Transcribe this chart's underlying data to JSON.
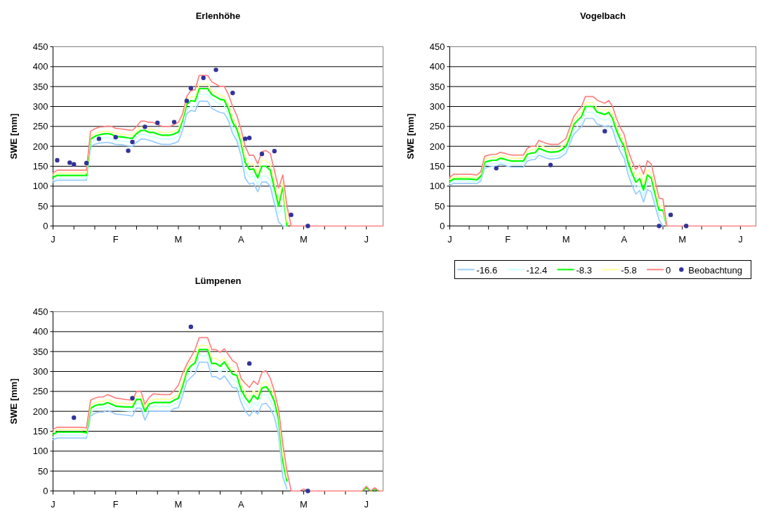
{
  "chart_data": [
    {
      "type": "line",
      "title": "Erlenhöhe",
      "ylabel": "SWE [mm]",
      "ylim": [
        0,
        450
      ],
      "yticks": [
        0,
        50,
        100,
        150,
        200,
        250,
        300,
        350,
        400,
        450
      ],
      "grid": "y",
      "legend": false,
      "marker": "none",
      "categories": [
        "J",
        null,
        null,
        null,
        null,
        null,
        null,
        null,
        null,
        null,
        null,
        null,
        null,
        null,
        null,
        "F",
        null,
        null,
        null,
        null,
        null,
        null,
        null,
        null,
        null,
        null,
        null,
        null,
        null,
        null,
        "M",
        null,
        null,
        null,
        null,
        null,
        null,
        null,
        null,
        null,
        null,
        null,
        null,
        null,
        null,
        "A",
        null,
        null,
        null,
        null,
        null,
        null,
        null,
        null,
        null,
        null,
        null,
        null,
        null,
        null,
        "M",
        null,
        null,
        null,
        null,
        null,
        null,
        null,
        null,
        null,
        null,
        null,
        null,
        null,
        null,
        "J",
        null,
        null,
        null,
        null
      ],
      "series": [
        {
          "color": "#99ccff",
          "values": [
            110,
            115,
            115,
            115,
            115,
            115,
            115,
            115,
            115,
            200,
            205,
            208,
            209,
            210,
            208,
            205,
            204,
            203,
            201,
            200,
            210,
            218,
            218,
            215,
            212,
            208,
            205,
            205,
            205,
            208,
            212,
            240,
            282,
            290,
            288,
            313,
            313,
            313,
            295,
            290,
            285,
            283,
            264,
            232,
            214,
            177,
            120,
            105,
            108,
            86,
            110,
            111,
            100,
            55,
            10,
            0,
            0,
            null,
            null,
            null,
            null,
            null,
            null,
            null,
            null,
            null,
            null,
            null,
            null,
            null,
            null,
            null,
            null,
            null,
            null,
            null,
            null,
            null,
            null,
            null
          ]
        },
        {
          "color": "#ccffff",
          "values": [
            115,
            120,
            120,
            120,
            120,
            120,
            120,
            120,
            120,
            208,
            215,
            219,
            221,
            222,
            220,
            215,
            214,
            213,
            211,
            210,
            222,
            230,
            230,
            225,
            225,
            221,
            218,
            218,
            218,
            221,
            225,
            253,
            292,
            300,
            298,
            330,
            330,
            330,
            318,
            311,
            305,
            302,
            279,
            245,
            227,
            192,
            140,
            123,
            125,
            102,
            125,
            125,
            115,
            73,
            30,
            50,
            0,
            null,
            null,
            null,
            null,
            null,
            null,
            null,
            null,
            null,
            null,
            null,
            null,
            null,
            null,
            null,
            null,
            null,
            null,
            null,
            null,
            null,
            null,
            null
          ]
        },
        {
          "color": "#00ff00",
          "values": [
            122,
            127,
            127,
            127,
            127,
            127,
            127,
            127,
            127,
            218,
            225,
            229,
            231,
            232,
            230,
            225,
            224,
            223,
            221,
            220,
            232,
            240,
            240,
            235,
            235,
            231,
            228,
            228,
            228,
            231,
            236,
            265,
            305,
            315,
            313,
            345,
            345,
            345,
            330,
            324,
            318,
            316,
            293,
            260,
            243,
            210,
            160,
            142,
            143,
            121,
            150,
            150,
            140,
            95,
            50,
            100,
            0,
            null,
            null,
            null,
            null,
            null,
            null,
            null,
            null,
            null,
            null,
            null,
            null,
            null,
            null,
            null,
            null,
            null,
            null,
            null,
            null,
            null,
            null,
            null
          ]
        },
        {
          "color": "#ffff99",
          "values": [
            128,
            133,
            133,
            133,
            133,
            133,
            133,
            133,
            133,
            226,
            232,
            236,
            237,
            238,
            236,
            232,
            231,
            230,
            229,
            228,
            238,
            248,
            248,
            243,
            243,
            239,
            235,
            235,
            235,
            238,
            244,
            272,
            315,
            325,
            323,
            356,
            356,
            356,
            340,
            334,
            328,
            326,
            304,
            272,
            255,
            221,
            172,
            154,
            155,
            133,
            165,
            165,
            155,
            110,
            65,
            110,
            10,
            0,
            null,
            null,
            null,
            null,
            null,
            null,
            null,
            null,
            null,
            null,
            null,
            null,
            null,
            null,
            null,
            null,
            null,
            null,
            null,
            null,
            null,
            null
          ]
        },
        {
          "color": "#ff8080",
          "values": [
            133,
            140,
            140,
            140,
            140,
            140,
            140,
            140,
            140,
            238,
            244,
            248,
            249,
            251,
            250,
            245,
            244,
            243,
            241,
            240,
            250,
            263,
            263,
            260,
            260,
            255,
            250,
            250,
            250,
            255,
            260,
            281,
            325,
            340,
            342,
            378,
            378,
            378,
            362,
            356,
            350,
            350,
            330,
            300,
            277,
            243,
            200,
            177,
            178,
            156,
            187,
            189,
            182,
            139,
            95,
            128,
            50,
            0,
            0,
            0,
            0,
            0,
            0,
            0,
            0,
            0,
            0,
            0,
            0,
            0,
            0,
            0,
            0,
            0,
            0,
            0,
            0,
            0,
            0,
            0
          ]
        },
        {
          "type": "scatter",
          "marker": "circle",
          "color": "#333399",
          "values": [
            null,
            165,
            null,
            null,
            159,
            155,
            null,
            null,
            158,
            null,
            null,
            219,
            null,
            null,
            null,
            223,
            null,
            null,
            189,
            211,
            null,
            null,
            249,
            null,
            null,
            259,
            null,
            null,
            null,
            261,
            null,
            null,
            314,
            346,
            null,
            null,
            372,
            null,
            null,
            392,
            null,
            null,
            null,
            334,
            null,
            null,
            219,
            221,
            null,
            null,
            181,
            null,
            null,
            188,
            null,
            null,
            null,
            28,
            null,
            null,
            null,
            0,
            null,
            null,
            null,
            null,
            null,
            null,
            null,
            null,
            null,
            null,
            null,
            null,
            null,
            null,
            null,
            null,
            null,
            null
          ]
        }
      ]
    },
    {
      "type": "line",
      "title": "Vogelbach",
      "ylabel": "SWE [mm]",
      "ylim": [
        0,
        450
      ],
      "yticks": [
        0,
        50,
        100,
        150,
        200,
        250,
        300,
        350,
        400,
        450
      ],
      "grid": "y",
      "legend": "bottom",
      "marker": "none",
      "categories": [
        "J",
        null,
        null,
        null,
        null,
        null,
        null,
        null,
        null,
        null,
        null,
        null,
        null,
        null,
        null,
        "F",
        null,
        null,
        null,
        null,
        null,
        null,
        null,
        null,
        null,
        null,
        null,
        null,
        null,
        null,
        "M",
        null,
        null,
        null,
        null,
        null,
        null,
        null,
        null,
        null,
        null,
        null,
        null,
        null,
        null,
        "A",
        null,
        null,
        null,
        null,
        null,
        null,
        null,
        null,
        null,
        null,
        null,
        null,
        null,
        null,
        "M",
        null,
        null,
        null,
        null,
        null,
        null,
        null,
        null,
        null,
        null,
        null,
        null,
        null,
        null,
        "J",
        null,
        null,
        null,
        null
      ],
      "series": [
        {
          "name": "-16.6",
          "color": "#99ccff",
          "values": [
            102,
            107,
            107,
            107,
            107,
            107,
            107,
            106,
            113,
            145,
            148,
            150,
            150,
            155,
            153,
            150,
            148,
            148,
            148,
            148,
            163,
            166,
            167,
            178,
            174,
            170,
            168,
            169,
            170,
            175,
            183,
            207,
            230,
            240,
            250,
            270,
            270,
            270,
            256,
            253,
            250,
            252,
            243,
            211,
            187,
            170,
            130,
            103,
            80,
            89,
            60,
            92,
            85,
            50,
            15,
            0,
            null,
            null,
            null,
            null,
            null,
            null,
            null,
            null,
            null,
            null,
            null,
            null,
            null,
            null,
            null,
            null,
            null,
            null,
            null,
            null,
            null,
            null,
            null,
            null
          ]
        },
        {
          "name": "-12.4",
          "color": "#ccffff",
          "values": [
            107,
            113,
            113,
            113,
            113,
            113,
            112,
            111,
            119,
            152,
            155,
            157,
            157,
            160,
            158,
            157,
            155,
            155,
            155,
            155,
            170,
            173,
            174,
            185,
            181,
            177,
            175,
            176,
            177,
            182,
            190,
            215,
            240,
            251,
            262,
            285,
            285,
            285,
            273,
            269,
            265,
            270,
            256,
            225,
            202,
            185,
            145,
            118,
            95,
            104,
            75,
            111,
            105,
            67,
            28,
            20,
            0,
            null,
            null,
            null,
            null,
            null,
            null,
            null,
            null,
            null,
            null,
            null,
            null,
            null,
            null,
            null,
            null,
            null,
            null,
            null,
            null,
            null,
            null,
            null
          ]
        },
        {
          "name": "-8.3",
          "color": "#00ff00",
          "values": [
            112,
            118,
            118,
            118,
            118,
            118,
            117,
            116,
            125,
            160,
            163,
            165,
            165,
            170,
            168,
            165,
            163,
            163,
            163,
            163,
            180,
            183,
            184,
            195,
            191,
            187,
            185,
            186,
            187,
            192,
            200,
            225,
            255,
            265,
            275,
            300,
            300,
            300,
            286,
            283,
            280,
            285,
            270,
            240,
            217,
            200,
            160,
            133,
            110,
            119,
            90,
            128,
            120,
            80,
            40,
            40,
            0,
            null,
            null,
            null,
            null,
            null,
            null,
            null,
            null,
            null,
            null,
            null,
            null,
            null,
            null,
            null,
            null,
            null,
            null,
            null,
            null,
            null,
            null,
            null
          ]
        },
        {
          "name": "-5.8",
          "color": "#ffff99",
          "values": [
            117,
            123,
            123,
            123,
            123,
            123,
            122,
            122,
            130,
            168,
            171,
            172,
            172,
            177,
            175,
            172,
            170,
            170,
            170,
            170,
            188,
            191,
            192,
            205,
            200,
            195,
            193,
            194,
            195,
            200,
            208,
            234,
            265,
            275,
            285,
            310,
            310,
            310,
            296,
            293,
            290,
            295,
            282,
            252,
            229,
            212,
            172,
            146,
            125,
            134,
            105,
            142,
            133,
            92,
            50,
            50,
            0,
            null,
            null,
            null,
            null,
            null,
            null,
            null,
            null,
            null,
            null,
            null,
            null,
            null,
            null,
            null,
            null,
            null,
            null,
            null,
            null,
            null,
            null,
            null
          ]
        },
        {
          "name": "0",
          "color": "#ff8080",
          "values": [
            122,
            130,
            130,
            130,
            130,
            130,
            129,
            128,
            136,
            175,
            178,
            180,
            180,
            185,
            183,
            180,
            178,
            178,
            178,
            178,
            195,
            200,
            200,
            215,
            211,
            207,
            205,
            205,
            205,
            212,
            220,
            248,
            275,
            288,
            300,
            325,
            325,
            325,
            316,
            312,
            308,
            315,
            300,
            270,
            247,
            230,
            190,
            163,
            142,
            153,
            130,
            164,
            155,
            113,
            70,
            68,
            0,
            0,
            0,
            0,
            0,
            0,
            0,
            0,
            0,
            0,
            0,
            0,
            0,
            0,
            0,
            0,
            0,
            0,
            0,
            0,
            0,
            0,
            0,
            0
          ]
        },
        {
          "name": "Beobachtung",
          "type": "scatter",
          "marker": "circle",
          "color": "#333399",
          "values": [
            null,
            null,
            null,
            null,
            null,
            null,
            null,
            null,
            null,
            null,
            null,
            null,
            145,
            null,
            null,
            null,
            null,
            null,
            null,
            null,
            null,
            null,
            null,
            null,
            null,
            null,
            153,
            null,
            null,
            null,
            null,
            null,
            null,
            null,
            null,
            null,
            null,
            null,
            null,
            null,
            238,
            null,
            null,
            null,
            null,
            null,
            null,
            null,
            null,
            null,
            null,
            null,
            null,
            null,
            0,
            null,
            null,
            28,
            null,
            null,
            null,
            0,
            null,
            null,
            null,
            null,
            null,
            null,
            null,
            null,
            null,
            null,
            null,
            null,
            null,
            null,
            null,
            null,
            null,
            null
          ]
        }
      ]
    },
    {
      "type": "line",
      "title": "Lümpenen",
      "ylabel": "SWE [mm]",
      "ylim": [
        0,
        450
      ],
      "yticks": [
        0,
        50,
        100,
        150,
        200,
        250,
        300,
        350,
        400,
        450
      ],
      "grid": "y",
      "legend": false,
      "marker": "none",
      "categories": [
        "J",
        null,
        null,
        null,
        null,
        null,
        null,
        null,
        null,
        null,
        null,
        null,
        null,
        null,
        null,
        "F",
        null,
        null,
        null,
        null,
        null,
        null,
        null,
        null,
        null,
        null,
        null,
        null,
        null,
        null,
        "M",
        null,
        null,
        null,
        null,
        null,
        null,
        null,
        null,
        null,
        null,
        null,
        null,
        null,
        null,
        "A",
        null,
        null,
        null,
        null,
        null,
        null,
        null,
        null,
        null,
        null,
        null,
        null,
        null,
        null,
        "M",
        null,
        null,
        null,
        null,
        null,
        null,
        null,
        null,
        null,
        null,
        null,
        null,
        null,
        null,
        "J",
        null,
        null,
        null,
        null
      ],
      "series": [
        {
          "color": "#99ccff",
          "values": [
            129,
            133,
            133,
            133,
            133,
            133,
            133,
            133,
            132,
            188,
            195,
            198,
            198,
            202,
            198,
            193,
            192,
            191,
            190,
            188,
            208,
            208,
            178,
            200,
            200,
            200,
            200,
            200,
            200,
            207,
            209,
            238,
            275,
            285,
            295,
            323,
            323,
            323,
            287,
            287,
            280,
            289,
            274,
            260,
            258,
            223,
            200,
            188,
            203,
            193,
            218,
            220,
            207,
            185,
            140,
            35,
            5,
            null,
            null,
            null,
            null,
            null,
            null,
            null,
            null,
            null,
            null,
            null,
            null,
            null,
            null,
            null,
            null,
            null,
            null,
            null,
            null,
            null,
            null,
            null
          ]
        },
        {
          "color": "#ccffff",
          "values": [
            135,
            140,
            140,
            140,
            140,
            140,
            140,
            140,
            138,
            198,
            205,
            208,
            208,
            212,
            208,
            204,
            203,
            202,
            201,
            200,
            220,
            220,
            190,
            208,
            212,
            212,
            212,
            212,
            212,
            218,
            223,
            252,
            288,
            300,
            310,
            340,
            340,
            340,
            305,
            305,
            298,
            309,
            294,
            280,
            275,
            240,
            220,
            205,
            222,
            214,
            240,
            243,
            228,
            205,
            160,
            55,
            15,
            null,
            null,
            null,
            null,
            null,
            null,
            null,
            null,
            null,
            null,
            null,
            null,
            null,
            null,
            null,
            null,
            null,
            null,
            null,
            null,
            null,
            null,
            null
          ]
        },
        {
          "color": "#00ff00",
          "values": [
            142,
            148,
            148,
            148,
            148,
            148,
            148,
            148,
            146,
            207,
            214,
            217,
            217,
            222,
            218,
            213,
            212,
            211,
            211,
            210,
            230,
            230,
            200,
            218,
            222,
            222,
            222,
            222,
            222,
            228,
            233,
            263,
            300,
            314,
            322,
            355,
            355,
            355,
            320,
            320,
            313,
            324,
            308,
            293,
            290,
            255,
            235,
            222,
            240,
            230,
            258,
            262,
            248,
            225,
            180,
            75,
            25,
            null,
            null,
            null,
            null,
            null,
            null,
            null,
            null,
            null,
            null,
            null,
            null,
            null,
            null,
            null,
            null,
            null,
            0,
            8,
            0,
            5,
            0,
            null
          ]
        },
        {
          "color": "#ffff99",
          "values": [
            148,
            154,
            154,
            154,
            154,
            154,
            154,
            154,
            152,
            215,
            222,
            225,
            225,
            230,
            226,
            221,
            220,
            220,
            219,
            218,
            238,
            238,
            210,
            226,
            230,
            230,
            230,
            230,
            230,
            236,
            242,
            273,
            310,
            325,
            335,
            365,
            365,
            365,
            333,
            333,
            325,
            334,
            318,
            303,
            300,
            268,
            248,
            235,
            252,
            242,
            270,
            275,
            261,
            240,
            195,
            90,
            33,
            null,
            null,
            null,
            null,
            null,
            null,
            null,
            null,
            null,
            null,
            null,
            null,
            null,
            null,
            null,
            null,
            null,
            null,
            null,
            null,
            null,
            null,
            null
          ]
        },
        {
          "color": "#ff8080",
          "values": [
            155,
            160,
            160,
            160,
            160,
            160,
            160,
            160,
            158,
            228,
            233,
            236,
            236,
            242,
            238,
            233,
            232,
            230,
            229,
            228,
            250,
            251,
            218,
            235,
            244,
            243,
            242,
            242,
            242,
            252,
            265,
            295,
            318,
            336,
            355,
            385,
            385,
            385,
            355,
            355,
            348,
            357,
            342,
            327,
            320,
            283,
            270,
            260,
            276,
            267,
            298,
            302,
            283,
            250,
            205,
            118,
            50,
            0,
            0,
            0,
            5,
            0,
            0,
            0,
            0,
            0,
            0,
            0,
            0,
            0,
            0,
            0,
            0,
            0,
            0,
            12,
            0,
            8,
            0,
            0
          ]
        },
        {
          "type": "scatter",
          "marker": "circle",
          "color": "#333399",
          "values": [
            null,
            null,
            null,
            null,
            null,
            184,
            null,
            null,
            null,
            null,
            null,
            null,
            null,
            null,
            null,
            null,
            null,
            null,
            null,
            233,
            null,
            null,
            null,
            null,
            null,
            null,
            null,
            null,
            null,
            null,
            null,
            null,
            null,
            412,
            null,
            null,
            null,
            null,
            null,
            null,
            null,
            null,
            null,
            null,
            null,
            null,
            null,
            320,
            null,
            null,
            null,
            null,
            null,
            null,
            null,
            null,
            null,
            null,
            null,
            null,
            null,
            0,
            null,
            null,
            null,
            null,
            null,
            null,
            null,
            null,
            null,
            null,
            null,
            null,
            null,
            null,
            null,
            null,
            null,
            null
          ]
        }
      ]
    }
  ]
}
